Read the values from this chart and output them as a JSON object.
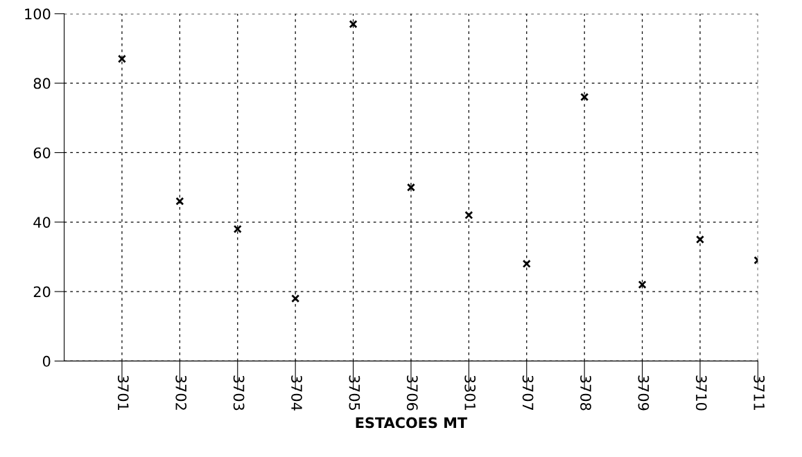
{
  "chart_data": {
    "type": "scatter",
    "xlabel": "ESTACOES MT",
    "categories": [
      "3701",
      "3702",
      "3703",
      "3704",
      "3705",
      "3706",
      "3301",
      "3707",
      "3708",
      "3709",
      "3710",
      "3711"
    ],
    "series": [
      {
        "color": "#000000",
        "values": [
          87,
          46,
          38,
          18,
          97,
          50,
          42,
          28,
          76,
          22,
          35,
          29
        ]
      }
    ],
    "ylim": [
      0,
      100
    ],
    "yticks": [
      0,
      20,
      40,
      60,
      80,
      100
    ],
    "grid": true,
    "marker": "cross"
  }
}
